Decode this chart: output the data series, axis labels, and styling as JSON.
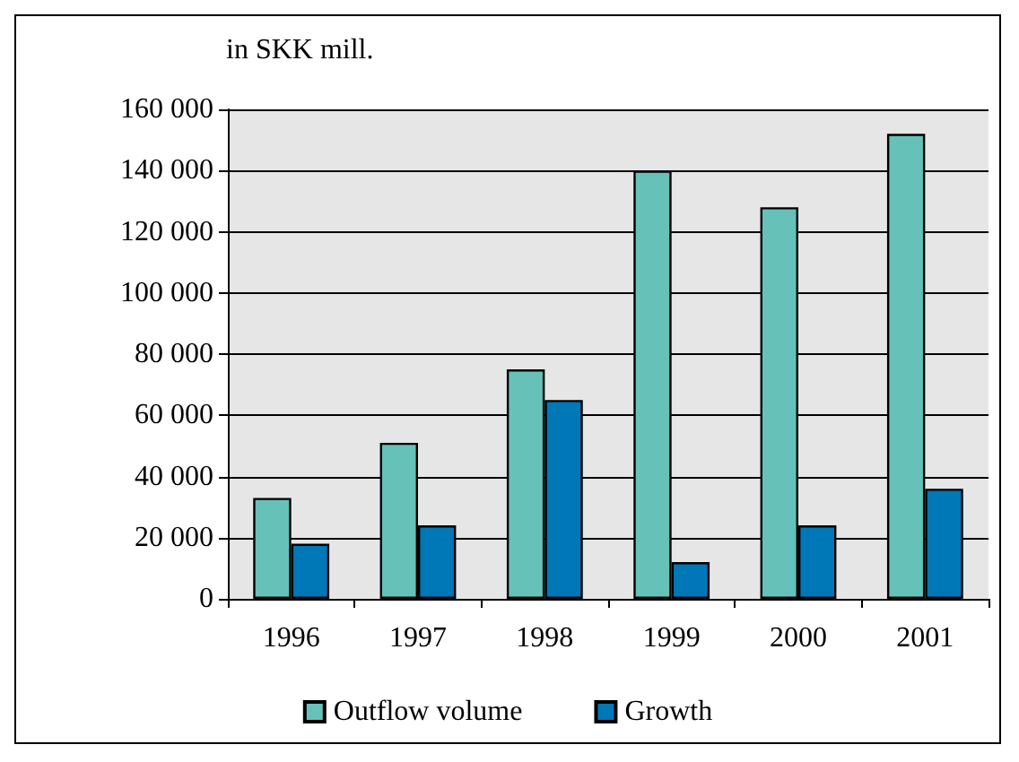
{
  "chart_data": {
    "type": "bar",
    "ylabel": "in SKK mill.",
    "categories": [
      "1996",
      "1997",
      "1998",
      "1999",
      "2000",
      "2001"
    ],
    "series": [
      {
        "name": "Outflow volume",
        "color": "#66c2b8",
        "values": [
          33000,
          51000,
          75000,
          140000,
          128000,
          152000
        ]
      },
      {
        "name": "Growth",
        "color": "#0077b6",
        "values": [
          18000,
          24000,
          65000,
          12000,
          24000,
          36000
        ]
      }
    ],
    "ylim": [
      0,
      160000
    ],
    "yticks": [
      {
        "value": 0,
        "label": "0"
      },
      {
        "value": 20000,
        "label": "20 000"
      },
      {
        "value": 40000,
        "label": "40 000"
      },
      {
        "value": 60000,
        "label": "60 000"
      },
      {
        "value": 80000,
        "label": "80 000"
      },
      {
        "value": 100000,
        "label": "100 000"
      },
      {
        "value": 120000,
        "label": "120 000"
      },
      {
        "value": 140000,
        "label": "140 000"
      },
      {
        "value": 160000,
        "label": "160 000"
      }
    ],
    "grid": "y",
    "legend": "bottom"
  }
}
